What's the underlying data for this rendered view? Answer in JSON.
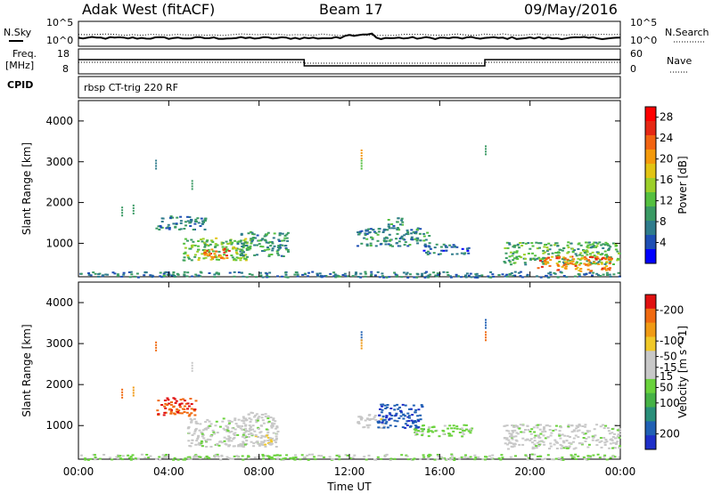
{
  "header": {
    "station": "Adak West (fitACF)",
    "beam": "Beam 17",
    "date": "09/May/2016"
  },
  "labels": {
    "nsky": "N.Sky",
    "nsearch": "N.Search",
    "freq_top": "Freq.",
    "freq_unit": "[MHz]",
    "nave": "Nave",
    "cpid": "CPID",
    "cpid_value": "rbsp CT-trig 220 RF",
    "noise_left_top": "10^5",
    "noise_left_bottom": "10^0",
    "noise_right_top": "10^5",
    "noise_right_bottom": "10^0",
    "freq_left_top": "18",
    "freq_left_bottom": "8",
    "nave_right_top": "60",
    "nave_right_bottom": "0",
    "xlabel": "Time UT"
  },
  "colors": {
    "power_scale": [
      "#0000ff",
      "#1e4fb4",
      "#2f7c8c",
      "#3a9a64",
      "#55c040",
      "#9ccf2a",
      "#e2c414",
      "#f49a0c",
      "#f26412",
      "#e62814",
      "#ff0000"
    ],
    "velocity_scale": [
      "#1e2fc8",
      "#2060b4",
      "#2a8f7a",
      "#46b246",
      "#6ad23c",
      "#c8c8c8",
      "#c8c8c8",
      "#f0c828",
      "#f09a14",
      "#f06a10",
      "#e01010"
    ]
  },
  "chart_data": [
    {
      "type": "heatmap",
      "name": "Power",
      "ylabel": "Slant Range [km]",
      "xlabel": "",
      "xlim": [
        0,
        24
      ],
      "ylim": [
        180,
        4500
      ],
      "x_ticks": [
        "00:00",
        "04:00",
        "08:00",
        "12:00",
        "16:00",
        "20:00",
        "00:00"
      ],
      "y_ticks": [
        1000,
        2000,
        3000,
        4000
      ],
      "colorbar_label": "Power [dB]",
      "colorbar_ticks": [
        4,
        8,
        12,
        16,
        20,
        24,
        28
      ],
      "colorbar_range": [
        0,
        30
      ],
      "blobs": [
        {
          "t0": 3.4,
          "t1": 5.6,
          "r0": 1350,
          "r1": 1700,
          "v": 7
        },
        {
          "t0": 4.6,
          "t1": 7.6,
          "r0": 600,
          "r1": 1150,
          "v": 13
        },
        {
          "t0": 5.5,
          "t1": 6.7,
          "r0": 600,
          "r1": 900,
          "v": 22
        },
        {
          "t0": 7.0,
          "t1": 9.3,
          "r0": 700,
          "r1": 1300,
          "v": 9
        },
        {
          "t0": 12.3,
          "t1": 15.5,
          "r0": 950,
          "r1": 1400,
          "v": 8
        },
        {
          "t0": 13.6,
          "t1": 14.3,
          "r0": 1350,
          "r1": 1650,
          "v": 9
        },
        {
          "t0": 15.2,
          "t1": 17.3,
          "r0": 750,
          "r1": 1000,
          "v": 6
        },
        {
          "t0": 18.8,
          "t1": 24.0,
          "r0": 500,
          "r1": 1050,
          "v": 11
        },
        {
          "t0": 20.3,
          "t1": 23.6,
          "r0": 330,
          "r1": 700,
          "v": 22
        },
        {
          "t0": 0.0,
          "t1": 24.0,
          "r0": 180,
          "r1": 320,
          "v": 7
        }
      ],
      "spots": [
        {
          "t": 3.4,
          "r": 3050,
          "v": 8
        },
        {
          "t": 12.5,
          "r": 3300,
          "v": 20
        },
        {
          "t": 12.5,
          "r": 3050,
          "v": 12
        },
        {
          "t": 18.0,
          "r": 3400,
          "v": 10
        },
        {
          "t": 1.9,
          "r": 1900,
          "v": 9
        },
        {
          "t": 2.4,
          "r": 1950,
          "v": 9
        },
        {
          "t": 5.0,
          "r": 2550,
          "v": 10
        }
      ]
    },
    {
      "type": "heatmap",
      "name": "Velocity",
      "ylabel": "Slant Range [km]",
      "xlabel": "Time UT",
      "xlim": [
        0,
        24
      ],
      "ylim": [
        180,
        4500
      ],
      "x_ticks": [
        "00:00",
        "04:00",
        "08:00",
        "12:00",
        "16:00",
        "20:00",
        "00:00"
      ],
      "y_ticks": [
        1000,
        2000,
        3000,
        4000
      ],
      "colorbar_label": "Velocity [m s^-1]",
      "colorbar_ticks": [
        200,
        100,
        50,
        15,
        -15,
        -50,
        -100,
        -200
      ],
      "colorbar_range": [
        250,
        -250
      ],
      "blobs": [
        {
          "t0": 3.4,
          "t1": 5.2,
          "r0": 1250,
          "r1": 1700,
          "v": -200
        },
        {
          "t0": 4.8,
          "t1": 7.4,
          "r0": 500,
          "r1": 1200,
          "v": 0
        },
        {
          "t0": 7.2,
          "t1": 8.8,
          "r0": 500,
          "r1": 1350,
          "v": 0
        },
        {
          "t0": 7.8,
          "t1": 8.6,
          "r0": 550,
          "r1": 800,
          "v": -60
        },
        {
          "t0": 12.3,
          "t1": 13.5,
          "r0": 950,
          "r1": 1300,
          "v": -40
        },
        {
          "t0": 13.2,
          "t1": 15.2,
          "r0": 950,
          "r1": 1550,
          "v": 190
        },
        {
          "t0": 14.8,
          "t1": 17.4,
          "r0": 750,
          "r1": 1050,
          "v": 40
        },
        {
          "t0": 18.8,
          "t1": 24.0,
          "r0": 450,
          "r1": 1050,
          "v": 0
        },
        {
          "t0": 0.0,
          "t1": 24.0,
          "r0": 180,
          "r1": 320,
          "v": 30
        }
      ],
      "spots": [
        {
          "t": 3.4,
          "r": 3050,
          "v": -200
        },
        {
          "t": 12.5,
          "r": 3300,
          "v": 180
        },
        {
          "t": 12.5,
          "r": 3100,
          "v": -150
        },
        {
          "t": 18.0,
          "r": 3600,
          "v": 200
        },
        {
          "t": 18.0,
          "r": 3300,
          "v": -160
        },
        {
          "t": 1.9,
          "r": 1900,
          "v": -200
        },
        {
          "t": 2.4,
          "r": 1950,
          "v": -150
        },
        {
          "t": 5.0,
          "r": 2550,
          "v": -40
        }
      ]
    }
  ]
}
